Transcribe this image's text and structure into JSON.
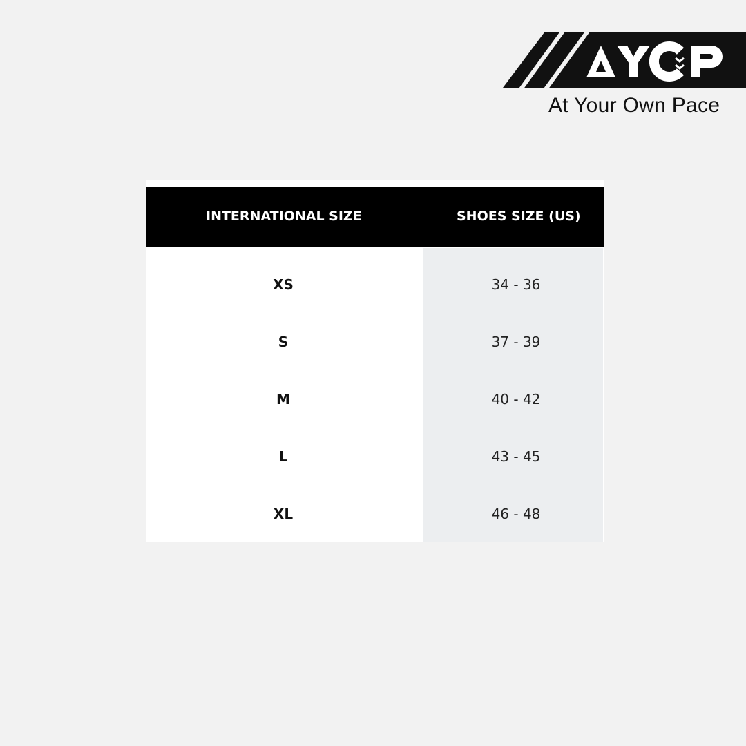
{
  "brand": {
    "logo_text": "AYCP",
    "tagline": "At Your Own Pace"
  },
  "table": {
    "headers": [
      "INTERNATIONAL SIZE",
      "SHOES SIZE (US)"
    ],
    "rows": [
      {
        "intl": "XS",
        "us": "34 - 36"
      },
      {
        "intl": "S",
        "us": "37 - 39"
      },
      {
        "intl": "M",
        "us": "40 - 42"
      },
      {
        "intl": "L",
        "us": "43 - 45"
      },
      {
        "intl": "XL",
        "us": "46 - 48"
      }
    ]
  },
  "colors": {
    "background": "#f2f2f2",
    "header": "#000000",
    "alt_column": "#eceef0"
  }
}
